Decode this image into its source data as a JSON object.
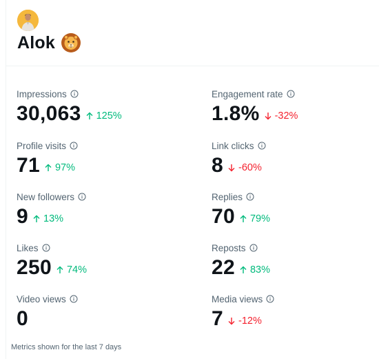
{
  "profile": {
    "name": "Alok",
    "emoji_icon": "lion-emoji-icon"
  },
  "metrics_left": [
    {
      "label": "Impressions",
      "value": "30,063",
      "change": "125%",
      "direction": "up"
    },
    {
      "label": "Profile visits",
      "value": "71",
      "change": "97%",
      "direction": "up"
    },
    {
      "label": "New followers",
      "value": "9",
      "change": "13%",
      "direction": "up"
    },
    {
      "label": "Likes",
      "value": "250",
      "change": "74%",
      "direction": "up"
    },
    {
      "label": "Video views",
      "value": "0",
      "change": "",
      "direction": "none"
    }
  ],
  "metrics_right": [
    {
      "label": "Engagement rate",
      "value": "1.8%",
      "change": "-32%",
      "direction": "down"
    },
    {
      "label": "Link clicks",
      "value": "8",
      "change": "-60%",
      "direction": "down"
    },
    {
      "label": "Replies",
      "value": "70",
      "change": "79%",
      "direction": "up"
    },
    {
      "label": "Reposts",
      "value": "22",
      "change": "83%",
      "direction": "up"
    },
    {
      "label": "Media views",
      "value": "7",
      "change": "-12%",
      "direction": "down"
    }
  ],
  "footnote": "Metrics shown for the last 7 days",
  "colors": {
    "up": "#00ba7c",
    "down": "#f4212e",
    "muted": "#536471",
    "text": "#0f1419"
  }
}
